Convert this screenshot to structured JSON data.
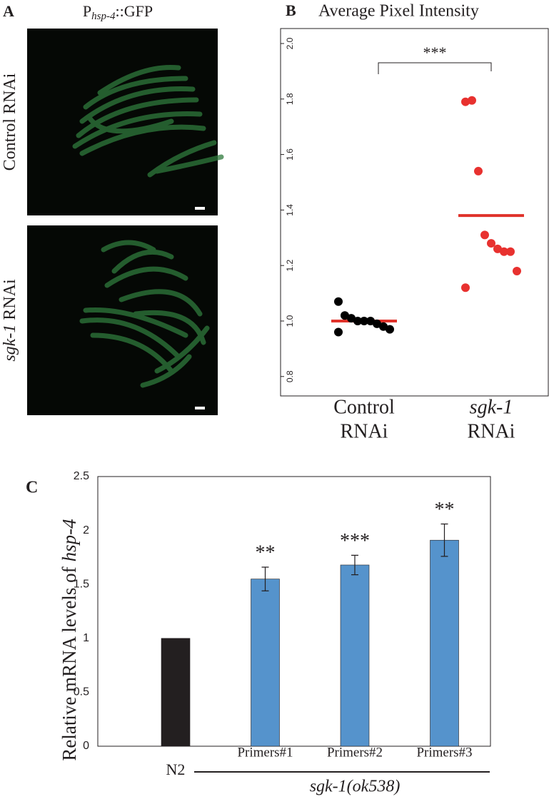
{
  "panel_a": {
    "letter": "A",
    "title": [
      "P",
      "hsp-4",
      "::GFP"
    ],
    "rows": [
      [
        "Control RNAi"
      ],
      [
        "sgk-1",
        "RNAi"
      ]
    ]
  },
  "chart_data": [
    {
      "type": "strip",
      "letter": "B",
      "title": "Average Pixel Intensity",
      "categories": [
        [
          "Control",
          "RNAi"
        ],
        [
          "sgk-1",
          "RNAi"
        ]
      ],
      "series": [
        {
          "color": "#000000",
          "values": [
            1.07,
            1.02,
            1.01,
            1.0,
            1.0,
            1.0,
            0.99,
            0.98,
            0.97,
            0.96
          ]
        },
        {
          "color": "#e8312f",
          "values": [
            1.79,
            1.795,
            1.54,
            1.31,
            1.28,
            1.26,
            1.25,
            1.25,
            1.18,
            1.12
          ]
        }
      ],
      "means": [
        1.0,
        1.38
      ],
      "mean_color": "#e0322a",
      "ylim": [
        0.73,
        2.054
      ],
      "yticks": [
        {
          "value": 0.8,
          "label": "0.8"
        },
        {
          "value": 1,
          "label": "1.0"
        },
        {
          "value": 1.2,
          "label": "1.2"
        },
        {
          "value": 1.4,
          "label": "1.4"
        },
        {
          "value": 1.6,
          "label": "1.6"
        },
        {
          "value": 1.8,
          "label": "1.8"
        },
        {
          "value": 2,
          "label": "2.0"
        }
      ],
      "annotation": "***"
    },
    {
      "type": "bar",
      "letter": "C",
      "categories": [
        "N2",
        "Primers#1",
        "Primers#2",
        "Primers#3"
      ],
      "values": [
        1,
        1.55,
        1.68,
        1.91
      ],
      "errors": [
        null,
        0.11,
        0.09,
        0.15
      ],
      "colors": [
        "#231f20",
        "#5593cc",
        "#5593cc",
        "#5593cc"
      ],
      "significance": [
        null,
        "**",
        "***",
        "**"
      ],
      "y_label": [
        "Relative mRNA levels of",
        "hsp-4"
      ],
      "group_label": "sgk-1(ok538)",
      "ylim": [
        0,
        2.5
      ],
      "yticks": [
        0,
        0.5,
        1,
        1.5,
        2,
        2.5
      ]
    }
  ]
}
